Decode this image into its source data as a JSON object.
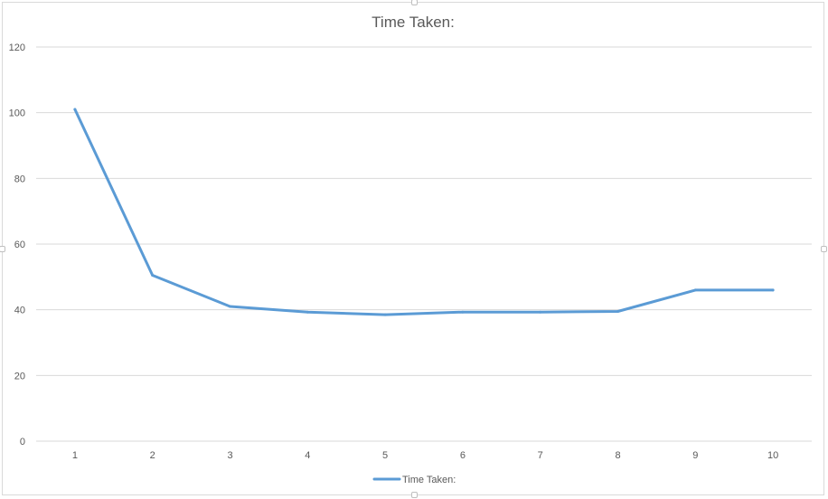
{
  "chart_data": {
    "type": "line",
    "title": "Time Taken:",
    "xlabel": "",
    "ylabel": "",
    "categories": [
      "1",
      "2",
      "3",
      "4",
      "5",
      "6",
      "7",
      "8",
      "9",
      "10"
    ],
    "series": [
      {
        "name": "Time Taken:",
        "color": "#5b9bd5",
        "values": [
          101,
          50.5,
          41,
          39.3,
          38.5,
          39.3,
          39.3,
          39.5,
          46,
          46
        ]
      }
    ],
    "ylim": [
      0,
      120
    ],
    "yticks": [
      "0",
      "20",
      "40",
      "60",
      "80",
      "100",
      "120"
    ],
    "grid": true,
    "legend_position": "bottom"
  }
}
